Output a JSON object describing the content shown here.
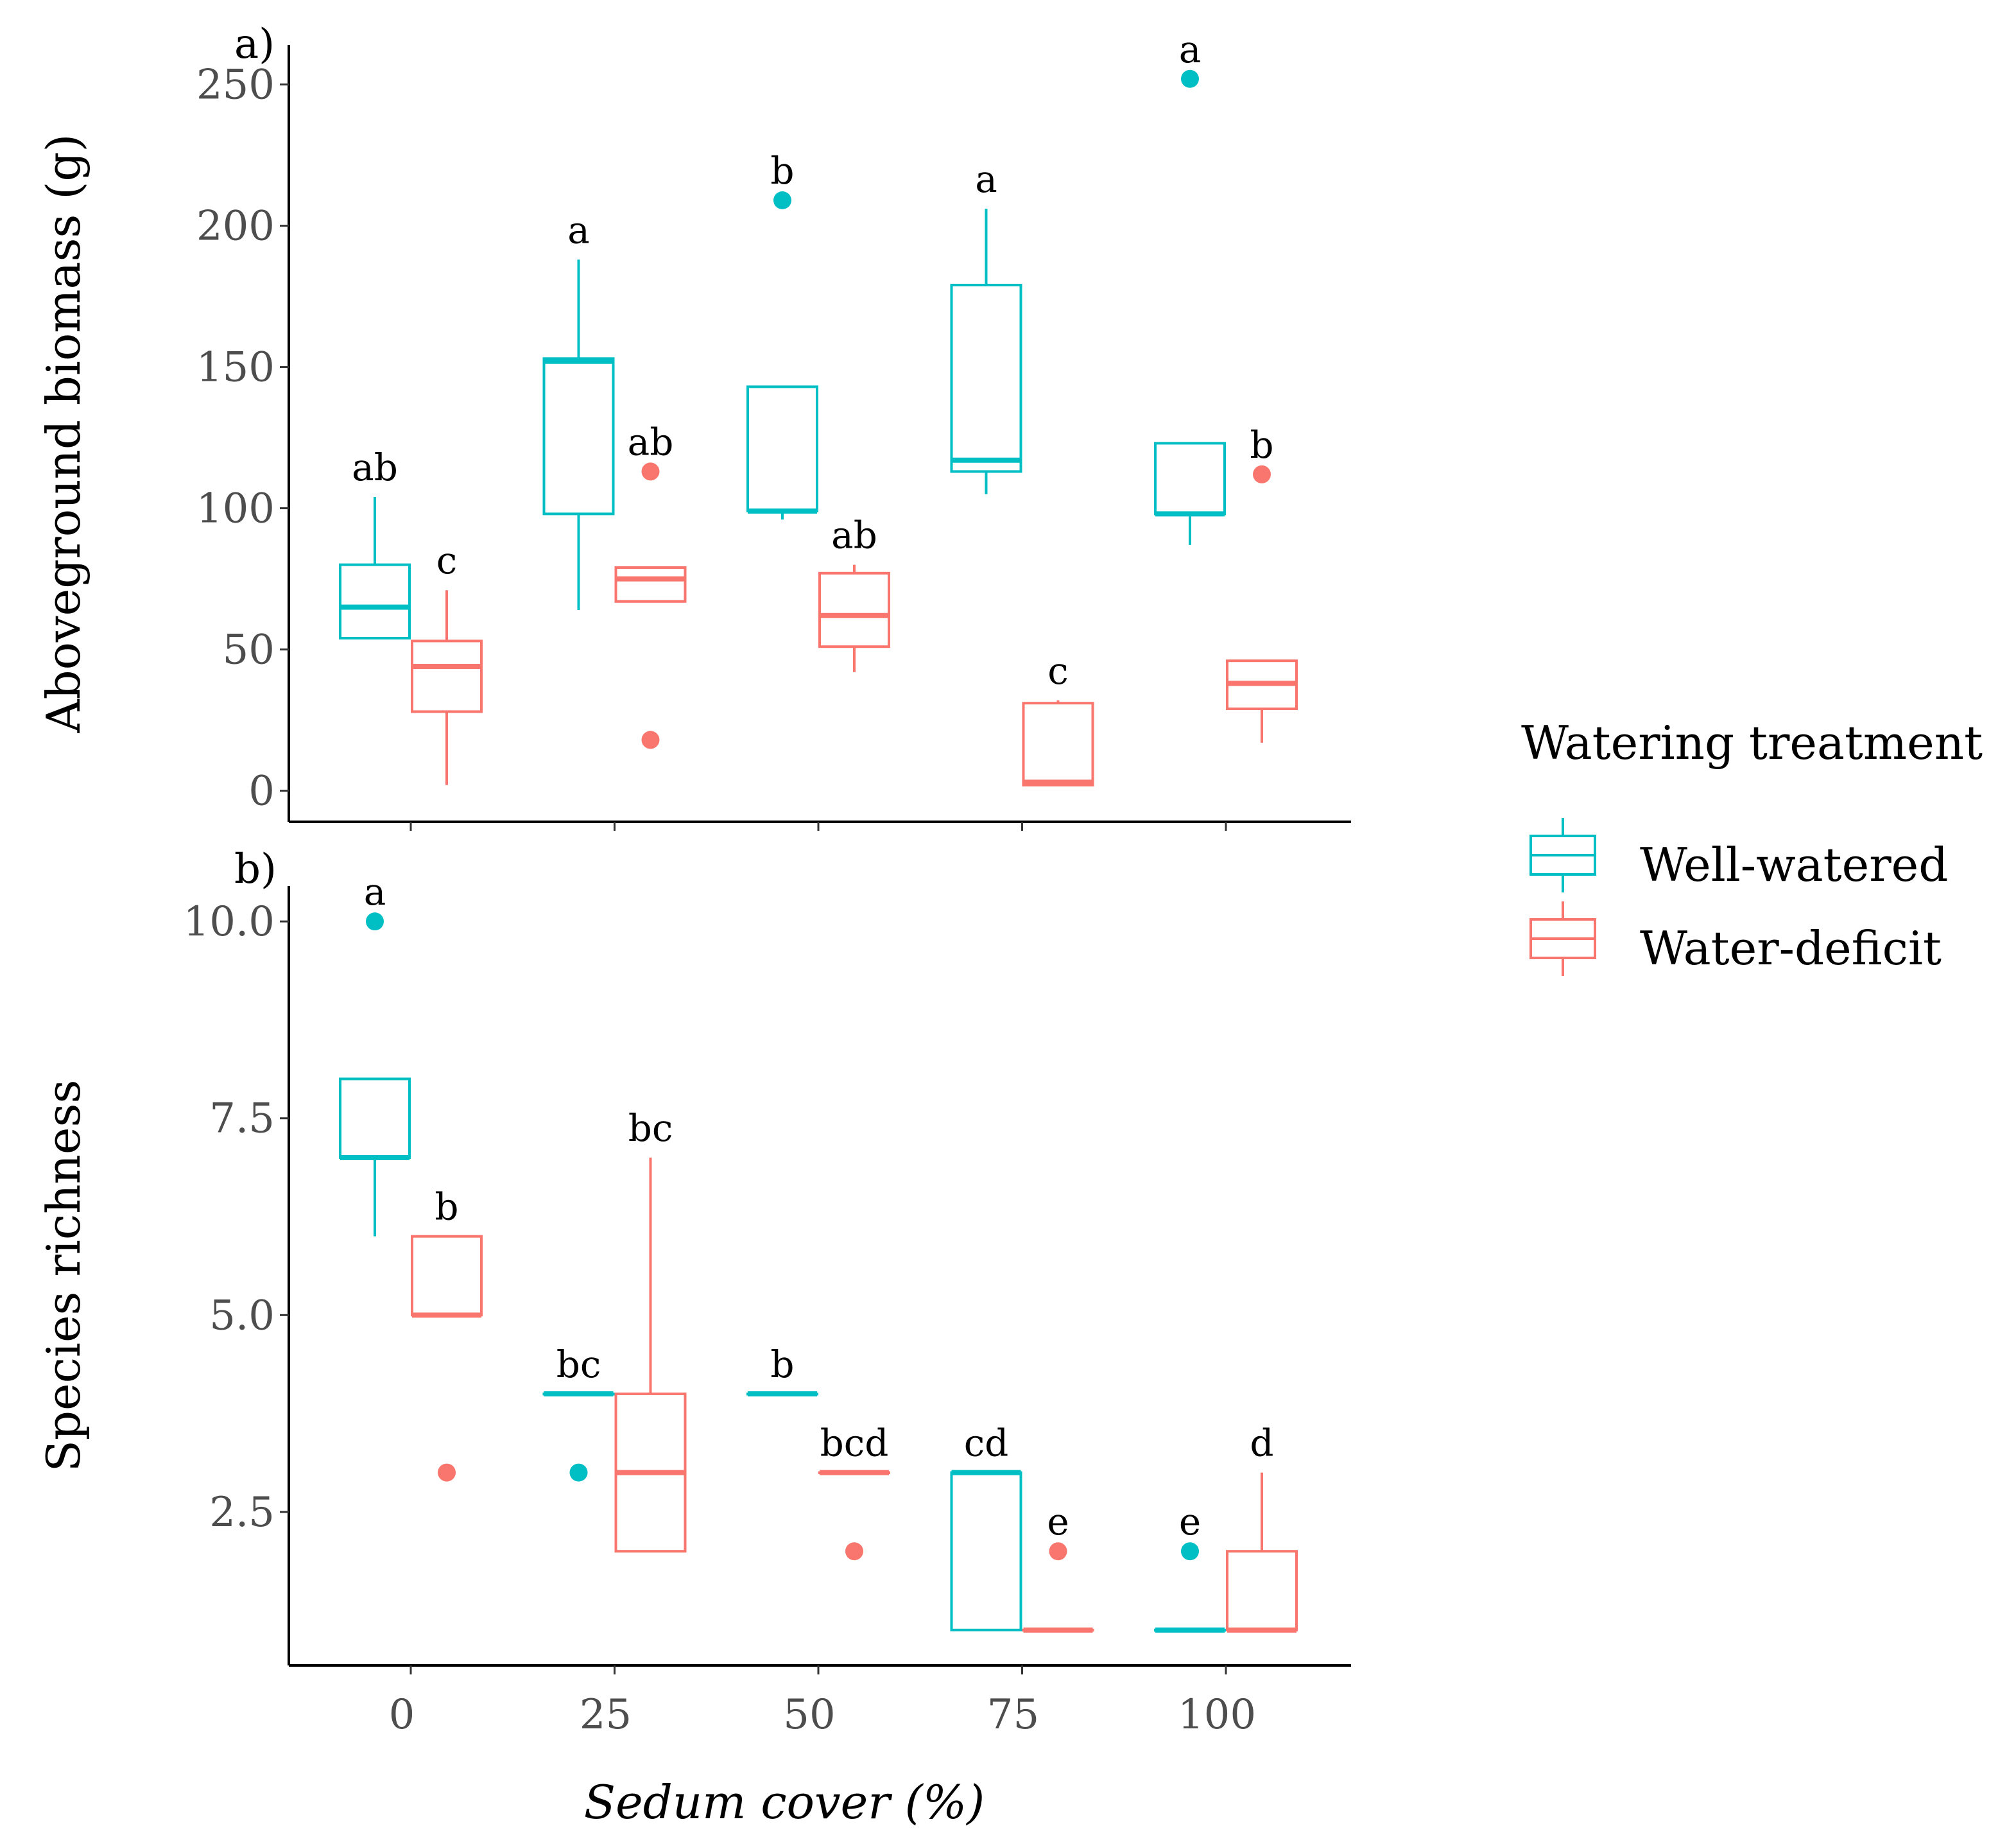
{
  "legend": {
    "title": "Watering treatment",
    "items": [
      {
        "label": "Well-watered",
        "color": "#00BFC4"
      },
      {
        "label": "Water-deficit",
        "color": "#F8766D"
      }
    ]
  },
  "chart_data": [
    {
      "type": "boxplot",
      "panel_label": "a)",
      "ylabel": "Aboveground biomass (g)",
      "ylim": [
        -11,
        264
      ],
      "yticks": [
        0,
        50,
        100,
        150,
        200,
        250
      ],
      "ytick_labels": [
        "0",
        "50",
        "100",
        "150",
        "200",
        "250"
      ],
      "xticks": [
        0,
        25,
        50,
        75,
        100
      ],
      "series": [
        {
          "name": "Well-watered",
          "color": "#00BFC4",
          "boxes": [
            {
              "x": 0,
              "whislo": 54,
              "q1": 54,
              "med": 65,
              "q3": 80,
              "whishi": 104,
              "fliers": [],
              "letter": "ab"
            },
            {
              "x": 25,
              "whislo": 64,
              "q1": 98,
              "med": 152,
              "q3": 153,
              "whishi": 188,
              "fliers": [],
              "letter": "a"
            },
            {
              "x": 50,
              "whislo": 96,
              "q1": 99,
              "med": 99,
              "q3": 143,
              "whishi": 143,
              "fliers": [
                209
              ],
              "letter": "b"
            },
            {
              "x": 75,
              "whislo": 105,
              "q1": 113,
              "med": 117,
              "q3": 179,
              "whishi": 206,
              "fliers": [],
              "letter": "a"
            },
            {
              "x": 100,
              "whislo": 87,
              "q1": 98,
              "med": 98,
              "q3": 123,
              "whishi": 123,
              "fliers": [
                252
              ],
              "letter": "a"
            }
          ]
        },
        {
          "name": "Water-deficit",
          "color": "#F8766D",
          "boxes": [
            {
              "x": 0,
              "whislo": 2,
              "q1": 28,
              "med": 44,
              "q3": 53,
              "whishi": 71,
              "fliers": [],
              "letter": "c"
            },
            {
              "x": 25,
              "whislo": 67,
              "q1": 67,
              "med": 75,
              "q3": 79,
              "whishi": 79,
              "fliers": [
                113,
                18
              ],
              "letter": "ab"
            },
            {
              "x": 50,
              "whislo": 42,
              "q1": 51,
              "med": 62,
              "q3": 77,
              "whishi": 80,
              "fliers": [],
              "letter": "ab"
            },
            {
              "x": 75,
              "whislo": 2,
              "q1": 2,
              "med": 3,
              "q3": 31,
              "whishi": 32,
              "fliers": [],
              "letter": "c"
            },
            {
              "x": 100,
              "whislo": 17,
              "q1": 29,
              "med": 38,
              "q3": 46,
              "whishi": 46,
              "fliers": [
                112
              ],
              "letter": "b"
            }
          ]
        }
      ]
    },
    {
      "type": "boxplot",
      "panel_label": "b)",
      "ylabel": "Species richness",
      "xlabel": "Sedum cover (%)",
      "ylim": [
        0.55,
        10.45
      ],
      "yticks": [
        2.5,
        5.0,
        7.5,
        10.0
      ],
      "ytick_labels": [
        "2.5",
        "5.0",
        "7.5",
        "10.0"
      ],
      "xticks": [
        0,
        25,
        50,
        75,
        100
      ],
      "xtick_labels": [
        "0",
        "25",
        "50",
        "75",
        "100"
      ],
      "series": [
        {
          "name": "Well-watered",
          "color": "#00BFC4",
          "boxes": [
            {
              "x": 0,
              "whislo": 6,
              "q1": 7,
              "med": 7,
              "q3": 8,
              "whishi": 8,
              "fliers": [
                10
              ],
              "letter": "a"
            },
            {
              "x": 25,
              "whislo": 4,
              "q1": 4,
              "med": 4,
              "q3": 4,
              "whishi": 4,
              "fliers": [
                3
              ],
              "letter": "bc"
            },
            {
              "x": 50,
              "whislo": 4,
              "q1": 4,
              "med": 4,
              "q3": 4,
              "whishi": 4,
              "fliers": [],
              "letter": "b"
            },
            {
              "x": 75,
              "whislo": 1,
              "q1": 1,
              "med": 3,
              "q3": 3,
              "whishi": 3,
              "fliers": [],
              "letter": "cd"
            },
            {
              "x": 100,
              "whislo": 1,
              "q1": 1,
              "med": 1,
              "q3": 1,
              "whishi": 1,
              "fliers": [
                2
              ],
              "letter": "e"
            }
          ]
        },
        {
          "name": "Water-deficit",
          "color": "#F8766D",
          "boxes": [
            {
              "x": 0,
              "whislo": 5,
              "q1": 5,
              "med": 5,
              "q3": 6,
              "whishi": 6,
              "fliers": [
                3
              ],
              "letter": "b"
            },
            {
              "x": 25,
              "whislo": 2,
              "q1": 2,
              "med": 3,
              "q3": 4,
              "whishi": 7,
              "fliers": [],
              "letter": "bc"
            },
            {
              "x": 50,
              "whislo": 3,
              "q1": 3,
              "med": 3,
              "q3": 3,
              "whishi": 3,
              "fliers": [
                2
              ],
              "letter": "bcd"
            },
            {
              "x": 75,
              "whislo": 1,
              "q1": 1,
              "med": 1,
              "q3": 1,
              "whishi": 1,
              "fliers": [
                2
              ],
              "letter": "e"
            },
            {
              "x": 100,
              "whislo": 1,
              "q1": 1,
              "med": 1,
              "q3": 2,
              "whishi": 3,
              "fliers": [],
              "letter": "d"
            }
          ]
        }
      ]
    }
  ]
}
